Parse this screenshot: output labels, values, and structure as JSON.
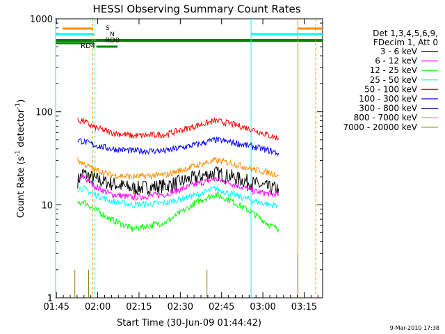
{
  "chart_data": {
    "type": "line",
    "title": "HESSI Observing Summary Count Rates",
    "xlabel": "Start Time (30-Jun-09 01:44:42)",
    "ylabel_main": "Count Rate (s",
    "ylabel_sup1": "-1",
    "ylabel_mid": " detector",
    "ylabel_sup2": "-1",
    "ylabel_end": ")",
    "yscale": "log",
    "ylim": [
      1,
      1000
    ],
    "xlim_minutes": [
      0,
      97
    ],
    "xticks": [
      {
        "label": "01:45",
        "t": 0.3
      },
      {
        "label": "02:00",
        "t": 15.3
      },
      {
        "label": "02:15",
        "t": 30.3
      },
      {
        "label": "02:30",
        "t": 45.3
      },
      {
        "label": "02:45",
        "t": 60.3
      },
      {
        "label": "03:00",
        "t": 75.3
      },
      {
        "label": "03:15",
        "t": 90.3
      }
    ],
    "yticks": [
      {
        "label": "1",
        "v": 1
      },
      {
        "label": "10",
        "v": 10
      },
      {
        "label": "100",
        "v": 100
      },
      {
        "label": "1000",
        "v": 1000
      }
    ],
    "legend_header": [
      "Det 1,3,4,5,6,9,",
      "FDecim 1, Att 0"
    ],
    "legend_position": "right",
    "series": [
      {
        "name": "3 - 6 keV",
        "color": "#000000",
        "points": [
          [
            8,
            18
          ],
          [
            10,
            22
          ],
          [
            14,
            19
          ],
          [
            20,
            17
          ],
          [
            28,
            15
          ],
          [
            40,
            16
          ],
          [
            52,
            20
          ],
          [
            58,
            22
          ],
          [
            64,
            20
          ],
          [
            72,
            17
          ],
          [
            78,
            15
          ],
          [
            81,
            15
          ]
        ]
      },
      {
        "name": "6 - 12 keV",
        "color": "#ff00ff",
        "points": [
          [
            8,
            18
          ],
          [
            10,
            20
          ],
          [
            14,
            16
          ],
          [
            20,
            13
          ],
          [
            28,
            12
          ],
          [
            40,
            13
          ],
          [
            52,
            17
          ],
          [
            58,
            19
          ],
          [
            64,
            17
          ],
          [
            72,
            14
          ],
          [
            78,
            13
          ],
          [
            81,
            13
          ]
        ]
      },
      {
        "name": "12 - 25 keV",
        "color": "#00ff00",
        "points": [
          [
            8,
            10
          ],
          [
            10,
            11
          ],
          [
            14,
            9
          ],
          [
            20,
            7
          ],
          [
            28,
            5.5
          ],
          [
            40,
            6.5
          ],
          [
            52,
            11
          ],
          [
            58,
            13
          ],
          [
            64,
            11
          ],
          [
            72,
            8
          ],
          [
            78,
            6
          ],
          [
            81,
            5.5
          ]
        ]
      },
      {
        "name": "25 - 50 keV",
        "color": "#00ffff",
        "points": [
          [
            8,
            15
          ],
          [
            10,
            15
          ],
          [
            14,
            13
          ],
          [
            20,
            11
          ],
          [
            28,
            10
          ],
          [
            40,
            10.5
          ],
          [
            52,
            13
          ],
          [
            58,
            15
          ],
          [
            64,
            13
          ],
          [
            72,
            11
          ],
          [
            78,
            10
          ],
          [
            81,
            10
          ]
        ]
      },
      {
        "name": "50 - 100 keV",
        "color": "#ff0000",
        "points": [
          [
            8,
            80
          ],
          [
            10,
            80
          ],
          [
            14,
            68
          ],
          [
            20,
            60
          ],
          [
            28,
            55
          ],
          [
            40,
            57
          ],
          [
            52,
            72
          ],
          [
            58,
            80
          ],
          [
            64,
            74
          ],
          [
            72,
            64
          ],
          [
            78,
            55
          ],
          [
            81,
            52
          ]
        ]
      },
      {
        "name": "100 - 300 keV",
        "color": "#0000ff",
        "points": [
          [
            8,
            50
          ],
          [
            10,
            48
          ],
          [
            14,
            44
          ],
          [
            20,
            40
          ],
          [
            28,
            38
          ],
          [
            40,
            38
          ],
          [
            52,
            45
          ],
          [
            58,
            50
          ],
          [
            64,
            47
          ],
          [
            72,
            42
          ],
          [
            78,
            38
          ],
          [
            81,
            36
          ]
        ]
      },
      {
        "name": "300 - 800 keV",
        "color": "#000080",
        "points": []
      },
      {
        "name": "800 - 7000 keV",
        "color": "#ff8c00",
        "points": [
          [
            8,
            30
          ],
          [
            10,
            28
          ],
          [
            14,
            24
          ],
          [
            20,
            21
          ],
          [
            28,
            20
          ],
          [
            40,
            21
          ],
          [
            52,
            27
          ],
          [
            58,
            30
          ],
          [
            64,
            28
          ],
          [
            72,
            24
          ],
          [
            78,
            22
          ],
          [
            81,
            21
          ]
        ]
      },
      {
        "name": "7000 - 20000 keV",
        "color": "#808000",
        "points": [
          [
            7,
            2
          ],
          [
            12,
            2
          ],
          [
            55,
            2
          ],
          [
            88,
            3
          ]
        ]
      }
    ],
    "annotations": [
      {
        "text": "S",
        "color": "#ff8c00"
      },
      {
        "text": "N",
        "color": "#00ffff"
      },
      {
        "text": "RD0",
        "color": "#008000"
      },
      {
        "text": "RD4",
        "color": "#008000"
      }
    ],
    "footer_date": "9-Mar-2010 17:38"
  }
}
